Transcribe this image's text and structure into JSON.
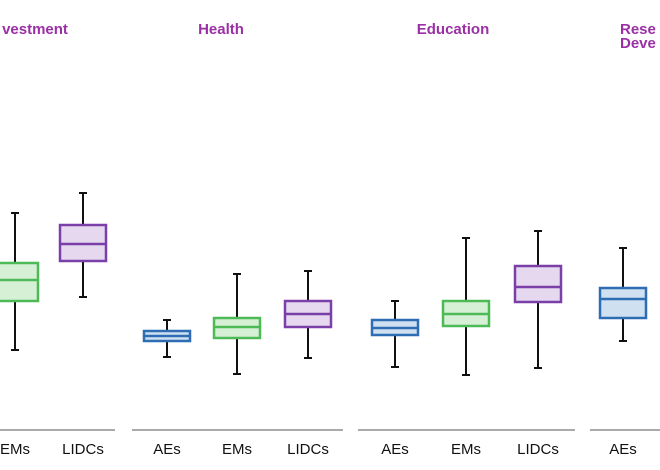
{
  "chart_data": [
    {
      "type": "box",
      "title": [
        "vestment"
      ],
      "categories": [
        "EMs",
        "LIDCs"
      ],
      "colors": [
        "#4cba55",
        "#7a3fa8"
      ],
      "fills": [
        "#d6f0d6",
        "#e5d8ef"
      ],
      "ylim": [
        0,
        250
      ],
      "boxes": [
        {
          "min": 50,
          "q1": 99,
          "median": 120,
          "q3": 137,
          "max": 187
        },
        {
          "min": 103,
          "q1": 139,
          "median": 156,
          "q3": 175,
          "max": 207
        }
      ]
    },
    {
      "type": "box",
      "title": [
        "Health"
      ],
      "categories": [
        "AEs",
        "EMs",
        "LIDCs"
      ],
      "colors": [
        "#2e6db4",
        "#4cba55",
        "#7a3fa8"
      ],
      "fills": [
        "#cfe0f1",
        "#d6f0d6",
        "#e5d8ef"
      ],
      "ylim": [
        0,
        250
      ],
      "boxes": [
        {
          "min": 43,
          "q1": 59,
          "median": 64,
          "q3": 69,
          "max": 80
        },
        {
          "min": 26,
          "q1": 62,
          "median": 73,
          "q3": 82,
          "max": 126
        },
        {
          "min": 42,
          "q1": 73,
          "median": 86,
          "q3": 99,
          "max": 129
        }
      ]
    },
    {
      "type": "box",
      "title": [
        "Education"
      ],
      "categories": [
        "AEs",
        "EMs",
        "LIDCs"
      ],
      "colors": [
        "#2e6db4",
        "#4cba55",
        "#7a3fa8"
      ],
      "fills": [
        "#cfe0f1",
        "#d6f0d6",
        "#e5d8ef"
      ],
      "ylim": [
        0,
        250
      ],
      "boxes": [
        {
          "min": 33,
          "q1": 65,
          "median": 72,
          "q3": 80,
          "max": 99
        },
        {
          "min": 25,
          "q1": 74,
          "median": 86,
          "q3": 99,
          "max": 162
        },
        {
          "min": 32,
          "q1": 98,
          "median": 113,
          "q3": 134,
          "max": 169
        }
      ]
    },
    {
      "type": "box",
      "title": [
        "Rese",
        "Deve"
      ],
      "categories": [
        "AEs"
      ],
      "colors": [
        "#2e6db4"
      ],
      "fills": [
        "#cfe0f1"
      ],
      "ylim": [
        0,
        250
      ],
      "boxes": [
        {
          "min": 59,
          "q1": 82,
          "median": 101,
          "q3": 112,
          "max": 152
        }
      ]
    }
  ]
}
